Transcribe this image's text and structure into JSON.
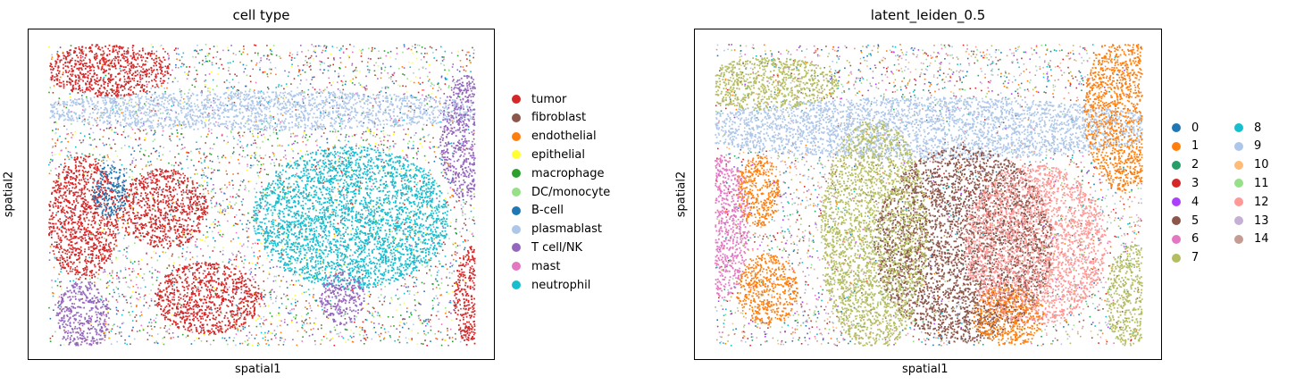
{
  "chart_data": [
    {
      "type": "scatter",
      "title": "cell type",
      "xlabel": "spatial1",
      "ylabel": "spatial2",
      "legend_location": "right",
      "grid": false,
      "ticks": false,
      "series": [
        {
          "name": "tumor",
          "color": "#d62728"
        },
        {
          "name": "fibroblast",
          "color": "#8c564b"
        },
        {
          "name": "endothelial",
          "color": "#ff7f0e"
        },
        {
          "name": "epithelial",
          "color": "#ffff33"
        },
        {
          "name": "macrophage",
          "color": "#2ca02c"
        },
        {
          "name": "DC/monocyte",
          "color": "#98df8a"
        },
        {
          "name": "B-cell",
          "color": "#1f77b4"
        },
        {
          "name": "plasmablast",
          "color": "#aec7e8"
        },
        {
          "name": "T cell/NK",
          "color": "#9467bd"
        },
        {
          "name": "mast",
          "color": "#e377c2"
        },
        {
          "name": "neutrophil",
          "color": "#17becf"
        }
      ]
    },
    {
      "type": "scatter",
      "title": "latent_leiden_0.5",
      "xlabel": "spatial1",
      "ylabel": "spatial2",
      "legend_location": "right",
      "grid": false,
      "ticks": false,
      "series": [
        {
          "name": "0",
          "color": "#1f77b4"
        },
        {
          "name": "1",
          "color": "#ff7f0e"
        },
        {
          "name": "2",
          "color": "#279e68"
        },
        {
          "name": "3",
          "color": "#d62728"
        },
        {
          "name": "4",
          "color": "#aa40fc"
        },
        {
          "name": "5",
          "color": "#8c564b"
        },
        {
          "name": "6",
          "color": "#e377c2"
        },
        {
          "name": "7",
          "color": "#b5bd61"
        },
        {
          "name": "8",
          "color": "#17becf"
        },
        {
          "name": "9",
          "color": "#aec7e8"
        },
        {
          "name": "10",
          "color": "#ffbb78"
        },
        {
          "name": "11",
          "color": "#98df8a"
        },
        {
          "name": "12",
          "color": "#ff9896"
        },
        {
          "name": "13",
          "color": "#c5b0d5"
        },
        {
          "name": "14",
          "color": "#c49c94"
        }
      ]
    }
  ]
}
